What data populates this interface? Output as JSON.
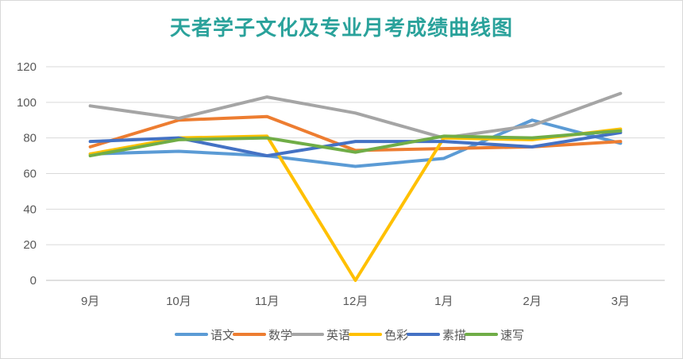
{
  "chart_data": {
    "type": "line",
    "title": "天者学子文化及专业月考成绩曲线图",
    "categories": [
      "9月",
      "10月",
      "11月",
      "12月",
      "1月",
      "2月",
      "3月"
    ],
    "ylim": [
      0,
      120
    ],
    "yticks": [
      0,
      20,
      40,
      60,
      80,
      100,
      120
    ],
    "grid": true,
    "legend_position": "bottom",
    "series": [
      {
        "name": "语文",
        "color": "#5b9bd5",
        "values": [
          71,
          72.5,
          70,
          64,
          68.5,
          90,
          77
        ]
      },
      {
        "name": "数学",
        "color": "#ed7d31",
        "values": [
          75,
          90,
          92,
          73,
          74,
          75,
          78
        ]
      },
      {
        "name": "英语",
        "color": "#a5a5a5",
        "values": [
          98,
          91,
          103,
          94,
          80,
          87,
          105
        ]
      },
      {
        "name": "色彩",
        "color": "#ffc000",
        "values": [
          71,
          80,
          81,
          0,
          80,
          79,
          85
        ]
      },
      {
        "name": "素描",
        "color": "#4472c4",
        "values": [
          78,
          80,
          70,
          78,
          78,
          75,
          83
        ]
      },
      {
        "name": "速写",
        "color": "#70ad47",
        "values": [
          70,
          79,
          80,
          72,
          81,
          80,
          84
        ]
      }
    ]
  }
}
